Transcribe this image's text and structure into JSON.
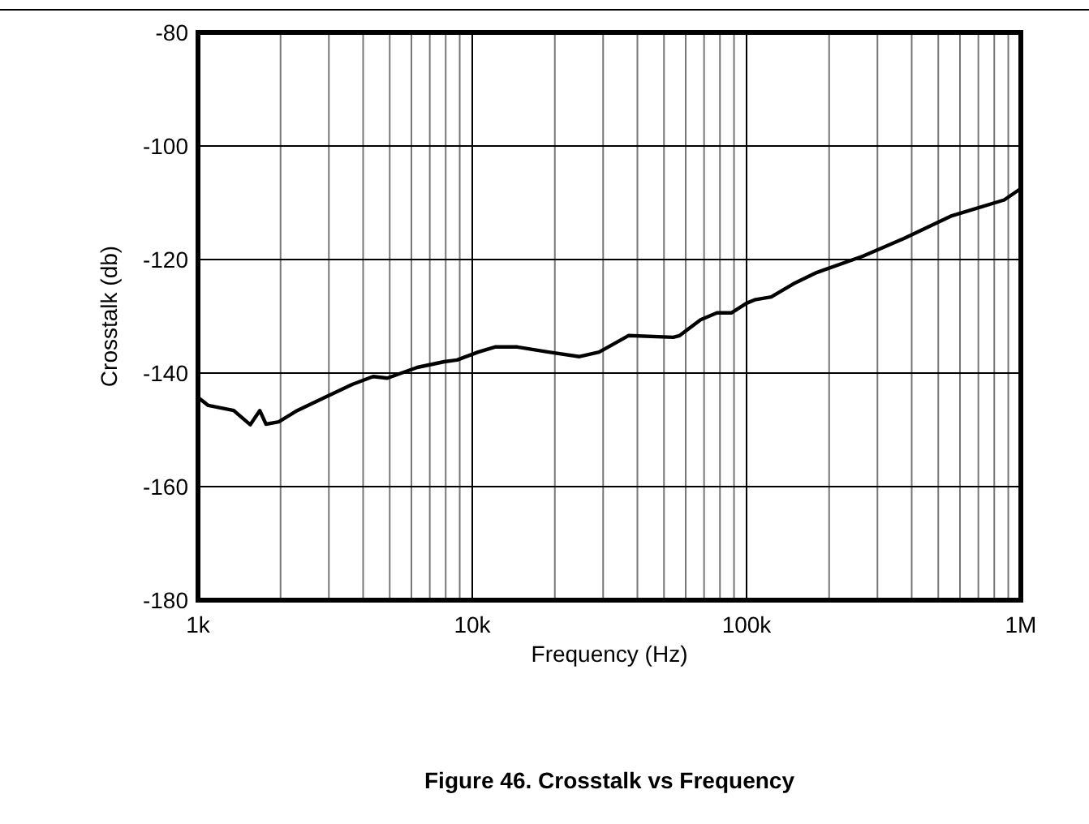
{
  "chart_data": {
    "type": "line",
    "title": "Figure 46. Crosstalk vs Frequency",
    "xlabel": "Frequency (Hz)",
    "ylabel": "Crosstalk (db)",
    "log": "x",
    "grid": true,
    "line_style": "solid",
    "xlim": [
      1000,
      1000000
    ],
    "xticks": [
      {
        "value": 1000,
        "label": "1k"
      },
      {
        "value": 10000,
        "label": "10k"
      },
      {
        "value": 100000,
        "label": "100k"
      },
      {
        "value": 1000000,
        "label": "1M"
      }
    ],
    "ylim": [
      -180,
      -80
    ],
    "yticks": [
      -180,
      -160,
      -140,
      -120,
      -100,
      -80
    ],
    "series": [
      {
        "color": "#000000",
        "x": [
          1000,
          1090,
          1350,
          1550,
          1680,
          1770,
          1970,
          2300,
          2900,
          3650,
          4350,
          4900,
          6300,
          7900,
          8800,
          10500,
          12100,
          14600,
          19000,
          24600,
          29000,
          34400,
          37100,
          54000,
          57000,
          68000,
          78000,
          88000,
          100000,
          107000,
          123000,
          148000,
          180000,
          266000,
          375000,
          560000,
          870000,
          1000000
        ],
        "values": [
          -144.3,
          -145.7,
          -146.6,
          -149.1,
          -146.6,
          -149,
          -148.6,
          -146.6,
          -144.3,
          -142,
          -140.6,
          -140.9,
          -139,
          -138,
          -137.7,
          -136.3,
          -135.4,
          -135.4,
          -136.3,
          -137.1,
          -136.3,
          -134.3,
          -133.4,
          -133.7,
          -133.4,
          -130.6,
          -129.4,
          -129.4,
          -127.7,
          -127.1,
          -126.6,
          -124.3,
          -122.3,
          -119.4,
          -116.3,
          -112.3,
          -109.5,
          -107.5
        ]
      }
    ]
  }
}
